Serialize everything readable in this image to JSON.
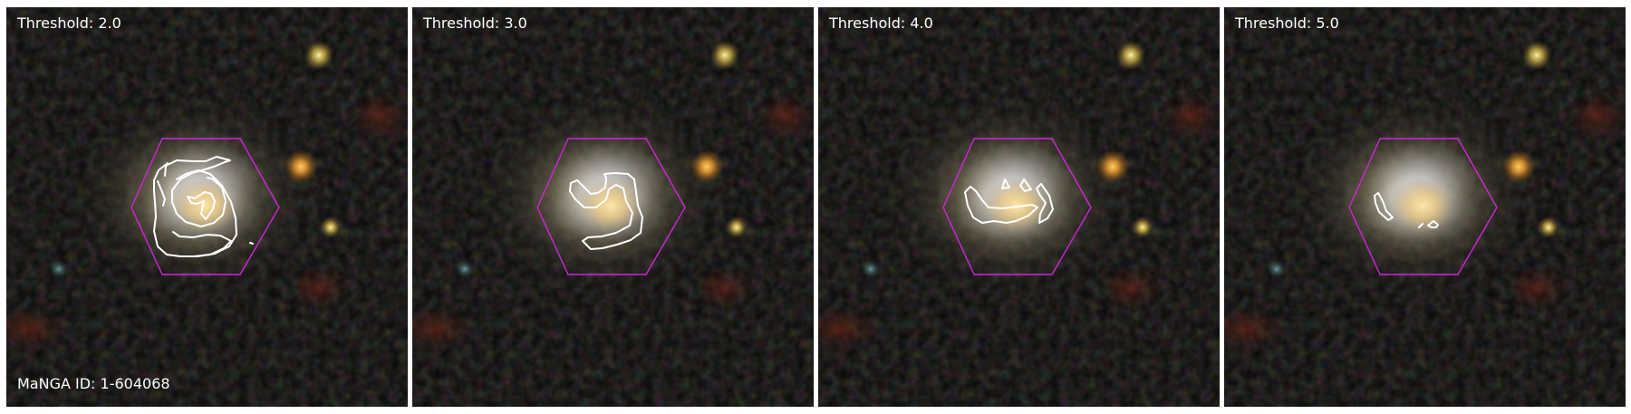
{
  "figure": {
    "panels": [
      {
        "threshold_label": "Threshold: 2.0"
      },
      {
        "threshold_label": "Threshold: 3.0"
      },
      {
        "threshold_label": "Threshold: 4.0"
      },
      {
        "threshold_label": "Threshold: 5.0"
      }
    ],
    "manga_id_label": "MaNGA ID: 1-604068"
  },
  "colors": {
    "hexagon": "#d026d8",
    "contour": "#ffffff",
    "background": "#070806",
    "separator": "#ffffff"
  },
  "icons": {
    "hexagon": "ifu-hexagon-footprint",
    "contours": "spiral-arm-contours"
  }
}
